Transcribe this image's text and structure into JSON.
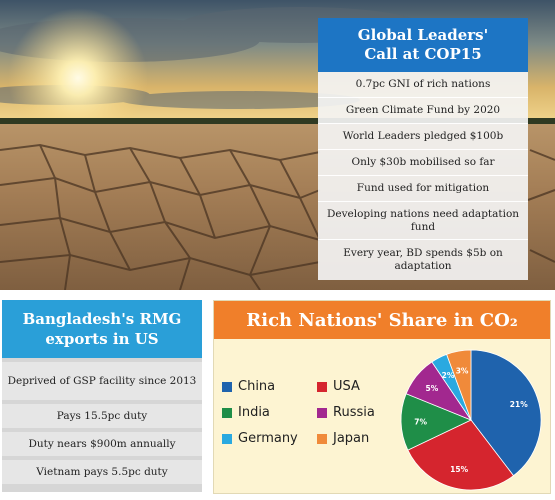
{
  "cop_panel": {
    "title_line1": "Global Leaders'",
    "title_line2": "Call at COP15",
    "items": [
      {
        "text": "0.7pc GNI of rich nations"
      },
      {
        "text": "Green Climate Fund by 2020"
      },
      {
        "text": "World Leaders pledged $100b"
      },
      {
        "text": "Only $30b mobilised so far"
      },
      {
        "text": "Fund used for mitigation"
      },
      {
        "text": "Developing nations need adaptation fund"
      },
      {
        "text": "Every year, BD spends $5b on adaptation"
      }
    ]
  },
  "rmg_panel": {
    "title_line1": "Bangladesh's RMG",
    "title_line2": "exports in US",
    "items": [
      {
        "text": "Deprived of GSP facility since 2013"
      },
      {
        "text": "Pays 15.5pc duty"
      },
      {
        "text": "Duty nears $900m annually"
      },
      {
        "text": "Vietnam pays 5.5pc duty"
      }
    ]
  },
  "co2_panel": {
    "title": "Rich Nations' Share in CO₂"
  },
  "chart_data": {
    "type": "pie",
    "title": "Rich Nations' Share in CO₂",
    "slices": [
      {
        "label": "China",
        "value": 21,
        "value_label": "21%",
        "color": "#1f63ad"
      },
      {
        "label": "USA",
        "value": 15,
        "value_label": "15%",
        "color": "#d5252e"
      },
      {
        "label": "India",
        "value": 7,
        "value_label": "7%",
        "color": "#1f8e48"
      },
      {
        "label": "Russia",
        "value": 5,
        "value_label": "5%",
        "color": "#a2288f"
      },
      {
        "label": "Germany",
        "value": 2,
        "value_label": "2%",
        "color": "#2aa9e0"
      },
      {
        "label": "Japan",
        "value": 3,
        "value_label": "3%",
        "color": "#f08a3a"
      }
    ],
    "legend_position": "left"
  }
}
